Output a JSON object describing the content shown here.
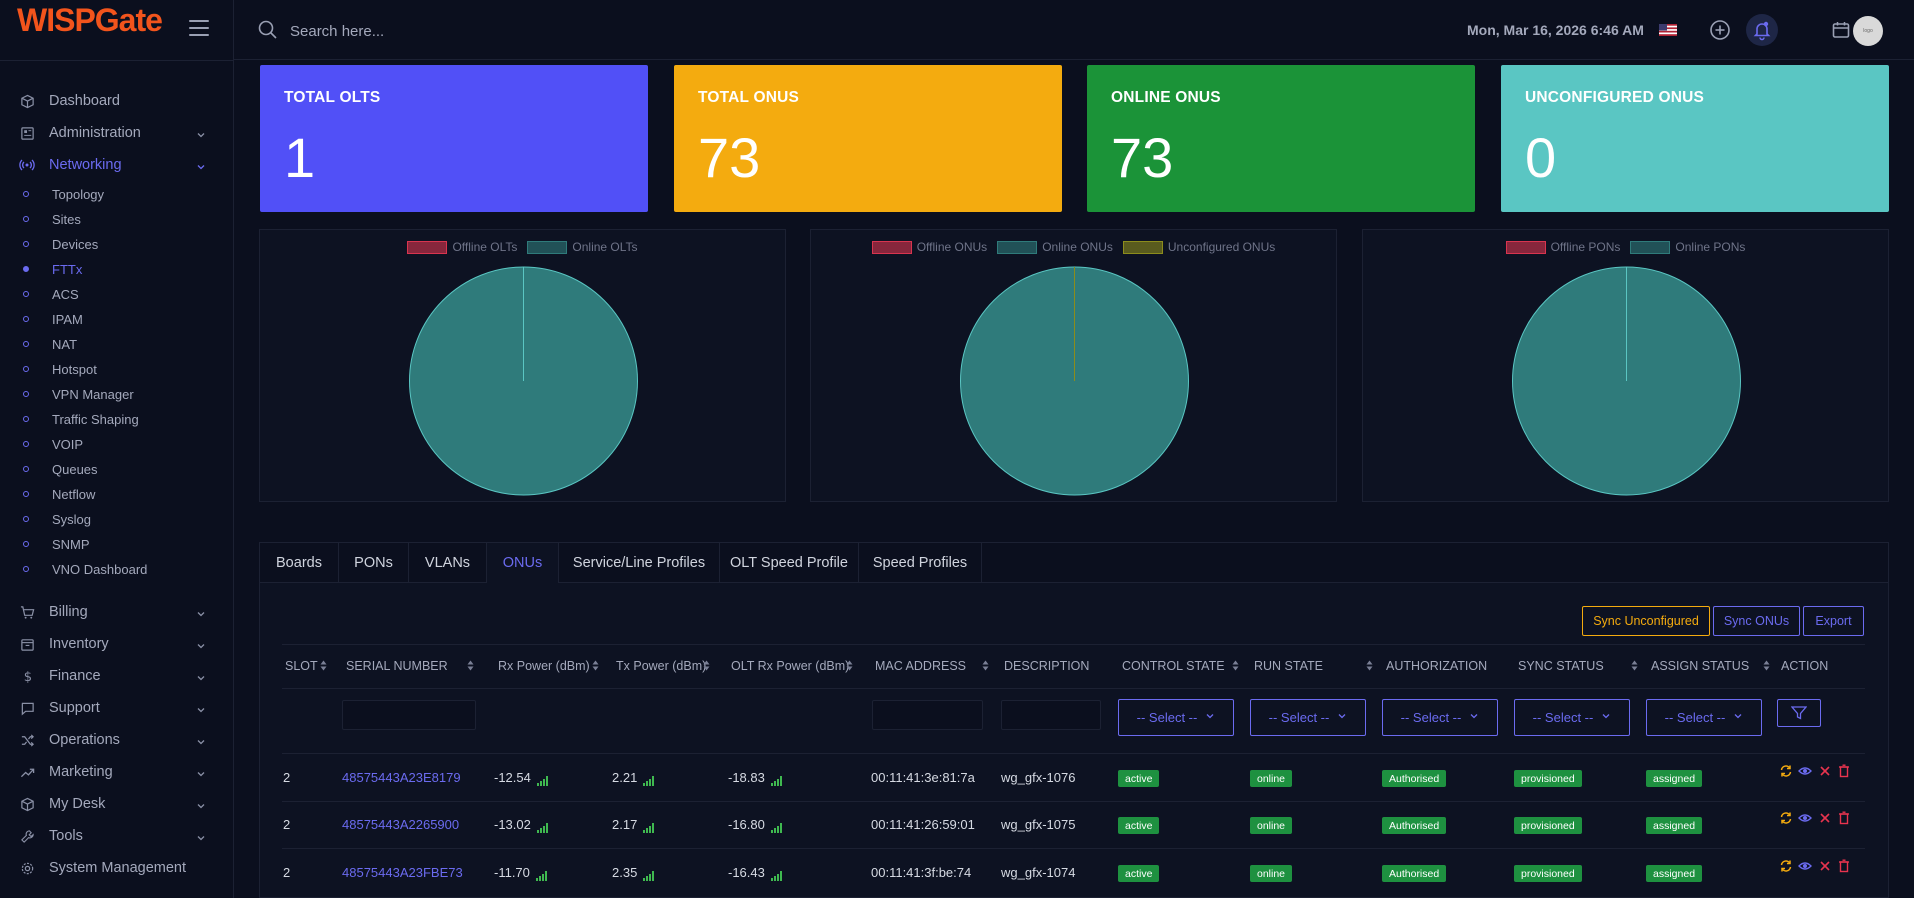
{
  "app": {
    "logo_text": "WISPGate"
  },
  "topbar": {
    "search_placeholder": "Search here...",
    "datetime": "Mon, Mar 16, 2026 6:46 AM",
    "avatar_text": "logo"
  },
  "sidebar": {
    "items": [
      {
        "label": "Dashboard",
        "icon": "cube-icon"
      },
      {
        "label": "Administration",
        "icon": "admin-icon"
      },
      {
        "label": "Networking",
        "icon": "signal-icon"
      },
      {
        "label": "Billing",
        "icon": "cart-icon"
      },
      {
        "label": "Inventory",
        "icon": "box-icon"
      },
      {
        "label": "Finance",
        "icon": "dollar-icon"
      },
      {
        "label": "Support",
        "icon": "chat-icon"
      },
      {
        "label": "Operations",
        "icon": "shuffle-icon"
      },
      {
        "label": "Marketing",
        "icon": "trend-icon"
      },
      {
        "label": "My Desk",
        "icon": "cube-icon"
      },
      {
        "label": "Tools",
        "icon": "wrench-icon"
      },
      {
        "label": "System Management",
        "icon": "gear-icon"
      }
    ],
    "networking_sub": [
      "Topology",
      "Sites",
      "Devices",
      "FTTx",
      "ACS",
      "IPAM",
      "NAT",
      "Hotspot",
      "VPN Manager",
      "Traffic Shaping",
      "VOIP",
      "Queues",
      "Netflow",
      "Syslog",
      "SNMP",
      "VNO Dashboard"
    ]
  },
  "cards": [
    {
      "title": "TOTAL OLTS",
      "value": "1",
      "color": "#5150f7"
    },
    {
      "title": "TOTAL ONUS",
      "value": "73",
      "color": "#f4ab0f"
    },
    {
      "title": "ONLINE ONUS",
      "value": "73",
      "color": "#1b9338"
    },
    {
      "title": "UNCONFIGURED ONUS",
      "value": "0",
      "color": "#5ac6c3"
    }
  ],
  "pies": [
    {
      "legend": [
        "Offline OLTs",
        "Online OLTs"
      ],
      "values": [
        0,
        1
      ]
    },
    {
      "legend": [
        "Offline ONUs",
        "Online ONUs",
        "Unconfigured ONUs"
      ],
      "values": [
        0,
        73,
        0
      ]
    },
    {
      "legend": [
        "Offline PONs",
        "Online PONs"
      ],
      "values": [
        0,
        1
      ]
    }
  ],
  "tabs": [
    "Boards",
    "PONs",
    "VLANs",
    "ONUs",
    "Service/Line Profiles",
    "OLT Speed Profile",
    "Speed Profiles"
  ],
  "buttons": {
    "sync_unconfigured": "Sync Unconfigured",
    "sync_onus": "Sync ONUs",
    "export": "Export"
  },
  "table": {
    "columns": [
      "SLOT",
      "SERIAL NUMBER",
      "Rx Power (dBm)",
      "Tx Power (dBm)",
      "OLT Rx Power (dBm)",
      "MAC ADDRESS",
      "DESCRIPTION",
      "CONTROL STATE",
      "RUN STATE",
      "AUTHORIZATION",
      "SYNC STATUS",
      "ASSIGN STATUS",
      "ACTION"
    ],
    "select_placeholder": "-- Select --",
    "rows": [
      {
        "slot": "2",
        "serial": "48575443A23E8179",
        "rx": "-12.54",
        "tx": "2.21",
        "olt_rx": "-18.83",
        "mac": "00:11:41:3e:81:7a",
        "desc": "wg_gfx-1076",
        "control": "active",
        "run": "online",
        "auth": "Authorised",
        "sync": "provisioned",
        "assign": "assigned"
      },
      {
        "slot": "2",
        "serial": "48575443A2265900",
        "rx": "-13.02",
        "tx": "2.17",
        "olt_rx": "-16.80",
        "mac": "00:11:41:26:59:01",
        "desc": "wg_gfx-1075",
        "control": "active",
        "run": "online",
        "auth": "Authorised",
        "sync": "provisioned",
        "assign": "assigned"
      },
      {
        "slot": "2",
        "serial": "48575443A23FBE73",
        "rx": "-11.70",
        "tx": "2.35",
        "olt_rx": "-16.43",
        "mac": "00:11:41:3f:be:74",
        "desc": "wg_gfx-1074",
        "control": "active",
        "run": "online",
        "auth": "Authorised",
        "sync": "provisioned",
        "assign": "assigned"
      }
    ]
  },
  "colors": {
    "accent": "#6b6bf0",
    "offline": "#d8344f",
    "online": "#2f7b7b",
    "unconfigured": "#8c8c1c",
    "badge": "#1e9140"
  }
}
